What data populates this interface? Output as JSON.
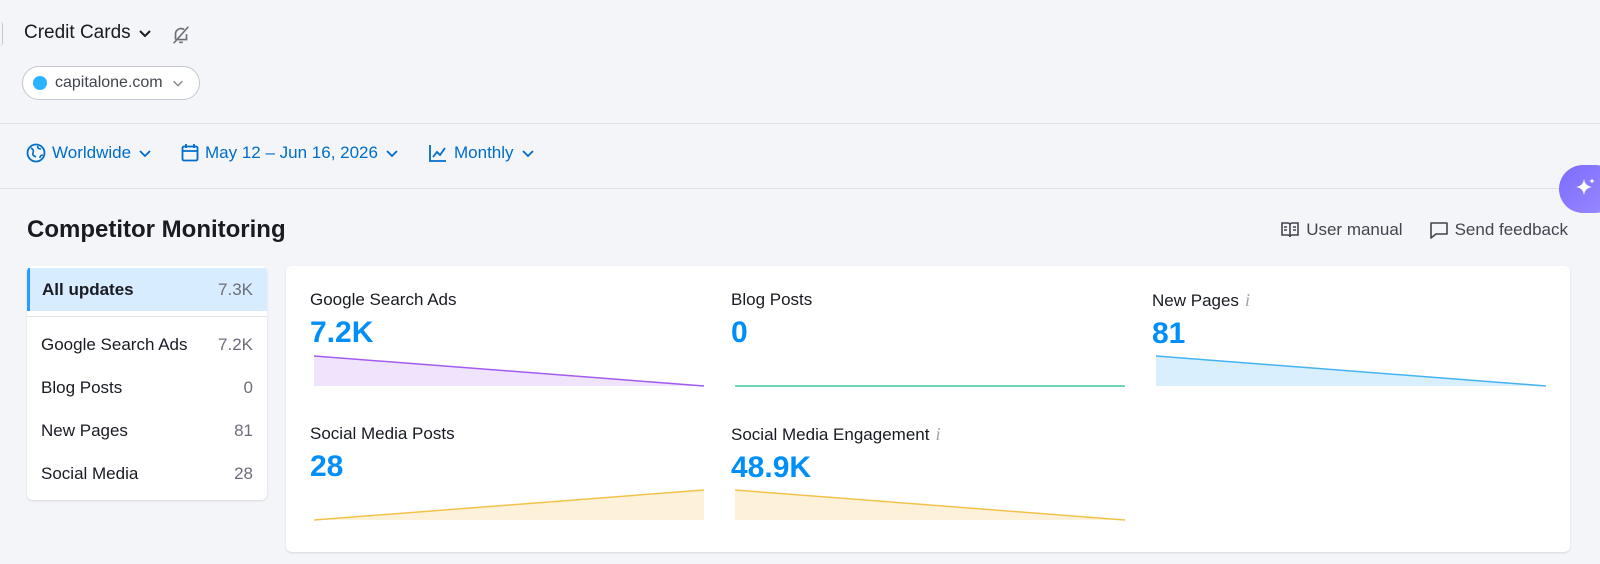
{
  "project": {
    "name": "Credit Cards"
  },
  "domain": {
    "name": "capitalone.com",
    "color": "#2bb3ff"
  },
  "filters": {
    "region": "Worldwide",
    "date_range": "May 12 – Jun 16, 2026",
    "granularity": "Monthly"
  },
  "page": {
    "title": "Competitor Monitoring",
    "user_manual": "User manual",
    "send_feedback": "Send feedback"
  },
  "sidebar": {
    "active": {
      "label": "All updates",
      "count": "7.3K"
    },
    "items": [
      {
        "label": "Google Search Ads",
        "count": "7.2K"
      },
      {
        "label": "Blog Posts",
        "count": "0"
      },
      {
        "label": "New Pages",
        "count": "81"
      },
      {
        "label": "Social Media",
        "count": "28"
      }
    ]
  },
  "cards": [
    {
      "title": "Google Search Ads",
      "value": "7.2K",
      "trend": "down",
      "color": "#a35cf0",
      "fill": "#efe4fc"
    },
    {
      "title": "Blog Posts",
      "value": "0",
      "trend": "flat",
      "color": "#3ec7a0",
      "fill": "#ffffff"
    },
    {
      "title": "New Pages",
      "value": "81",
      "trend": "down",
      "color": "#45b3f2",
      "fill": "#d9effd"
    },
    {
      "title": "Social Media Posts",
      "value": "28",
      "trend": "up",
      "color": "#f2c34a",
      "fill": "#fdf1da"
    },
    {
      "title": "Social Media Engagement",
      "value": "48.9K",
      "trend": "down",
      "color": "#f2c34a",
      "fill": "#fdf1da"
    }
  ],
  "icons": [
    "chevron-down-icon",
    "bell-off-icon",
    "globe-icon",
    "calendar-icon",
    "line-chart-icon",
    "book-icon",
    "comment-icon",
    "info-icon",
    "sparkle-icon"
  ]
}
